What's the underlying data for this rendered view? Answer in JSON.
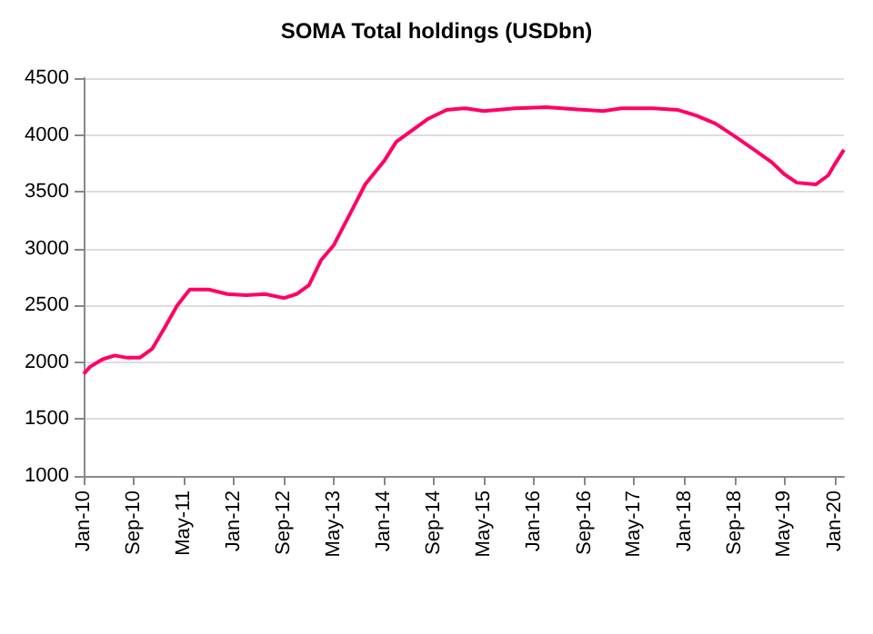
{
  "chart_data": {
    "type": "line",
    "title": "SOMA Total holdings (USDbn)",
    "x": [
      "2010-01",
      "2010-02",
      "2010-04",
      "2010-06",
      "2010-08",
      "2010-10",
      "2010-12",
      "2011-02",
      "2011-04",
      "2011-06",
      "2011-09",
      "2011-12",
      "2012-03",
      "2012-06",
      "2012-09",
      "2012-11",
      "2013-01",
      "2013-03",
      "2013-05",
      "2013-08",
      "2013-10",
      "2014-01",
      "2014-03",
      "2014-06",
      "2014-08",
      "2014-11",
      "2015-02",
      "2015-05",
      "2015-10",
      "2016-03",
      "2016-08",
      "2016-12",
      "2017-03",
      "2017-08",
      "2017-12",
      "2018-03",
      "2018-06",
      "2018-09",
      "2018-12",
      "2019-03",
      "2019-05",
      "2019-07",
      "2019-10",
      "2019-12",
      "2020-01",
      "2020-02-15"
    ],
    "series": [
      {
        "color": "#ff0066",
        "values": [
          1898,
          1960,
          2025,
          2060,
          2040,
          2040,
          2120,
          2310,
          2500,
          2640,
          2640,
          2600,
          2590,
          2600,
          2565,
          2600,
          2680,
          2900,
          3030,
          3350,
          3565,
          3770,
          3940,
          4060,
          4140,
          4220,
          4235,
          4210,
          4235,
          4245,
          4225,
          4210,
          4235,
          4235,
          4220,
          4170,
          4100,
          3990,
          3875,
          3760,
          3655,
          3580,
          3565,
          3645,
          3740,
          3870
        ]
      }
    ],
    "xlim": [
      "2010-01",
      "2020-02-15"
    ],
    "xticks": [
      {
        "value": "2010-01",
        "label": "Jan-10"
      },
      {
        "value": "2010-09",
        "label": "Sep-10"
      },
      {
        "value": "2011-05",
        "label": "May-11"
      },
      {
        "value": "2012-01",
        "label": "Jan-12"
      },
      {
        "value": "2012-09",
        "label": "Sep-12"
      },
      {
        "value": "2013-05",
        "label": "May-13"
      },
      {
        "value": "2014-01",
        "label": "Jan-14"
      },
      {
        "value": "2014-09",
        "label": "Sep-14"
      },
      {
        "value": "2015-05",
        "label": "May-15"
      },
      {
        "value": "2016-01",
        "label": "Jan-16"
      },
      {
        "value": "2016-09",
        "label": "Sep-16"
      },
      {
        "value": "2017-05",
        "label": "May-17"
      },
      {
        "value": "2018-01",
        "label": "Jan-18"
      },
      {
        "value": "2018-09",
        "label": "Sep-18"
      },
      {
        "value": "2019-05",
        "label": "May-19"
      },
      {
        "value": "2020-01",
        "label": "Jan-20"
      }
    ],
    "ylim": [
      1000,
      4500
    ],
    "yticks": [
      1000,
      1500,
      2000,
      2500,
      3000,
      3500,
      4000,
      4500
    ],
    "grid": "y",
    "marker": "none",
    "line_style": "solid"
  }
}
